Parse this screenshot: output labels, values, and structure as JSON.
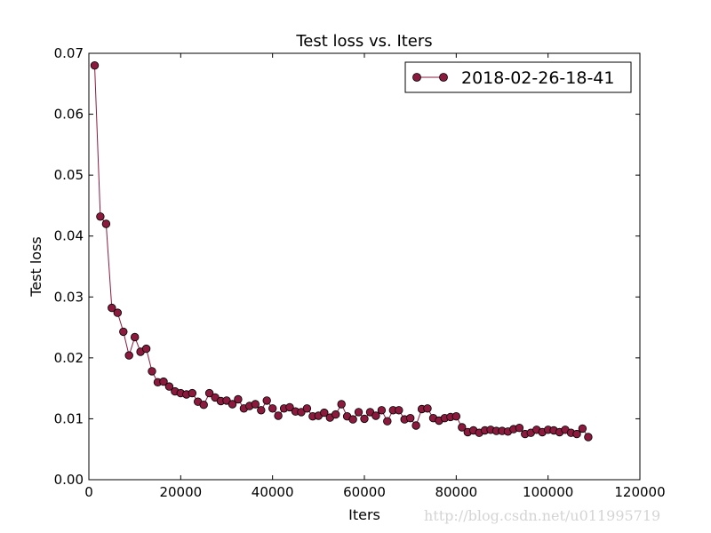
{
  "chart_data": {
    "type": "line",
    "title": "Test loss  vs. Iters",
    "xlabel": "Iters",
    "ylabel": "Test loss",
    "xlim": [
      0,
      120000
    ],
    "ylim": [
      0,
      0.07
    ],
    "x_ticks": [
      "0",
      "20000",
      "40000",
      "60000",
      "80000",
      "100000",
      "120000"
    ],
    "y_ticks": [
      "0.00",
      "0.01",
      "0.02",
      "0.03",
      "0.04",
      "0.05",
      "0.06",
      "0.07"
    ],
    "grid": false,
    "legend_position": "top-right",
    "series": [
      {
        "name": "2018-02-26-18-41",
        "color": "#8b1a3e",
        "marker": "circle",
        "x": [
          1250,
          2500,
          3750,
          5000,
          6250,
          7500,
          8750,
          10000,
          11250,
          12500,
          13750,
          15000,
          16250,
          17500,
          18750,
          20000,
          21250,
          22500,
          23750,
          25000,
          26250,
          27500,
          28750,
          30000,
          31250,
          32500,
          33750,
          35000,
          36250,
          37500,
          38750,
          40000,
          41250,
          42500,
          43750,
          45000,
          46250,
          47500,
          48750,
          50000,
          51250,
          52500,
          53750,
          55000,
          56250,
          57500,
          58750,
          60000,
          61250,
          62500,
          63750,
          65000,
          66250,
          67500,
          68750,
          70000,
          71250,
          72500,
          73750,
          75000,
          76250,
          77500,
          78750,
          80000,
          81250,
          82500,
          83750,
          85000,
          86250,
          87500,
          88750,
          90000,
          91250,
          92500,
          93750,
          95000,
          96250,
          97500,
          98750,
          100000,
          101250,
          102500,
          103750,
          105000,
          106250,
          107500,
          108750
        ],
        "y": [
          0.068,
          0.0432,
          0.042,
          0.0282,
          0.0274,
          0.0243,
          0.0204,
          0.0234,
          0.021,
          0.0215,
          0.0178,
          0.016,
          0.0161,
          0.0153,
          0.0145,
          0.0142,
          0.014,
          0.0142,
          0.0128,
          0.0123,
          0.0142,
          0.0135,
          0.0129,
          0.013,
          0.0124,
          0.0132,
          0.0117,
          0.0121,
          0.0124,
          0.0114,
          0.013,
          0.0117,
          0.0105,
          0.0117,
          0.0119,
          0.0112,
          0.0111,
          0.0117,
          0.0104,
          0.0105,
          0.011,
          0.0102,
          0.0107,
          0.0124,
          0.0104,
          0.0099,
          0.0111,
          0.01,
          0.0111,
          0.0105,
          0.0114,
          0.0096,
          0.0114,
          0.0114,
          0.0099,
          0.0101,
          0.0089,
          0.0116,
          0.0117,
          0.0101,
          0.0097,
          0.0101,
          0.0103,
          0.0104,
          0.0086,
          0.0078,
          0.0081,
          0.0077,
          0.0081,
          0.0082,
          0.008,
          0.008,
          0.0079,
          0.0083,
          0.0085,
          0.0075,
          0.0077,
          0.0082,
          0.0078,
          0.0082,
          0.0081,
          0.0078,
          0.0082,
          0.0077,
          0.0075,
          0.0084,
          0.007
        ]
      }
    ]
  },
  "watermark": "http://blog.csdn.net/u011995719"
}
